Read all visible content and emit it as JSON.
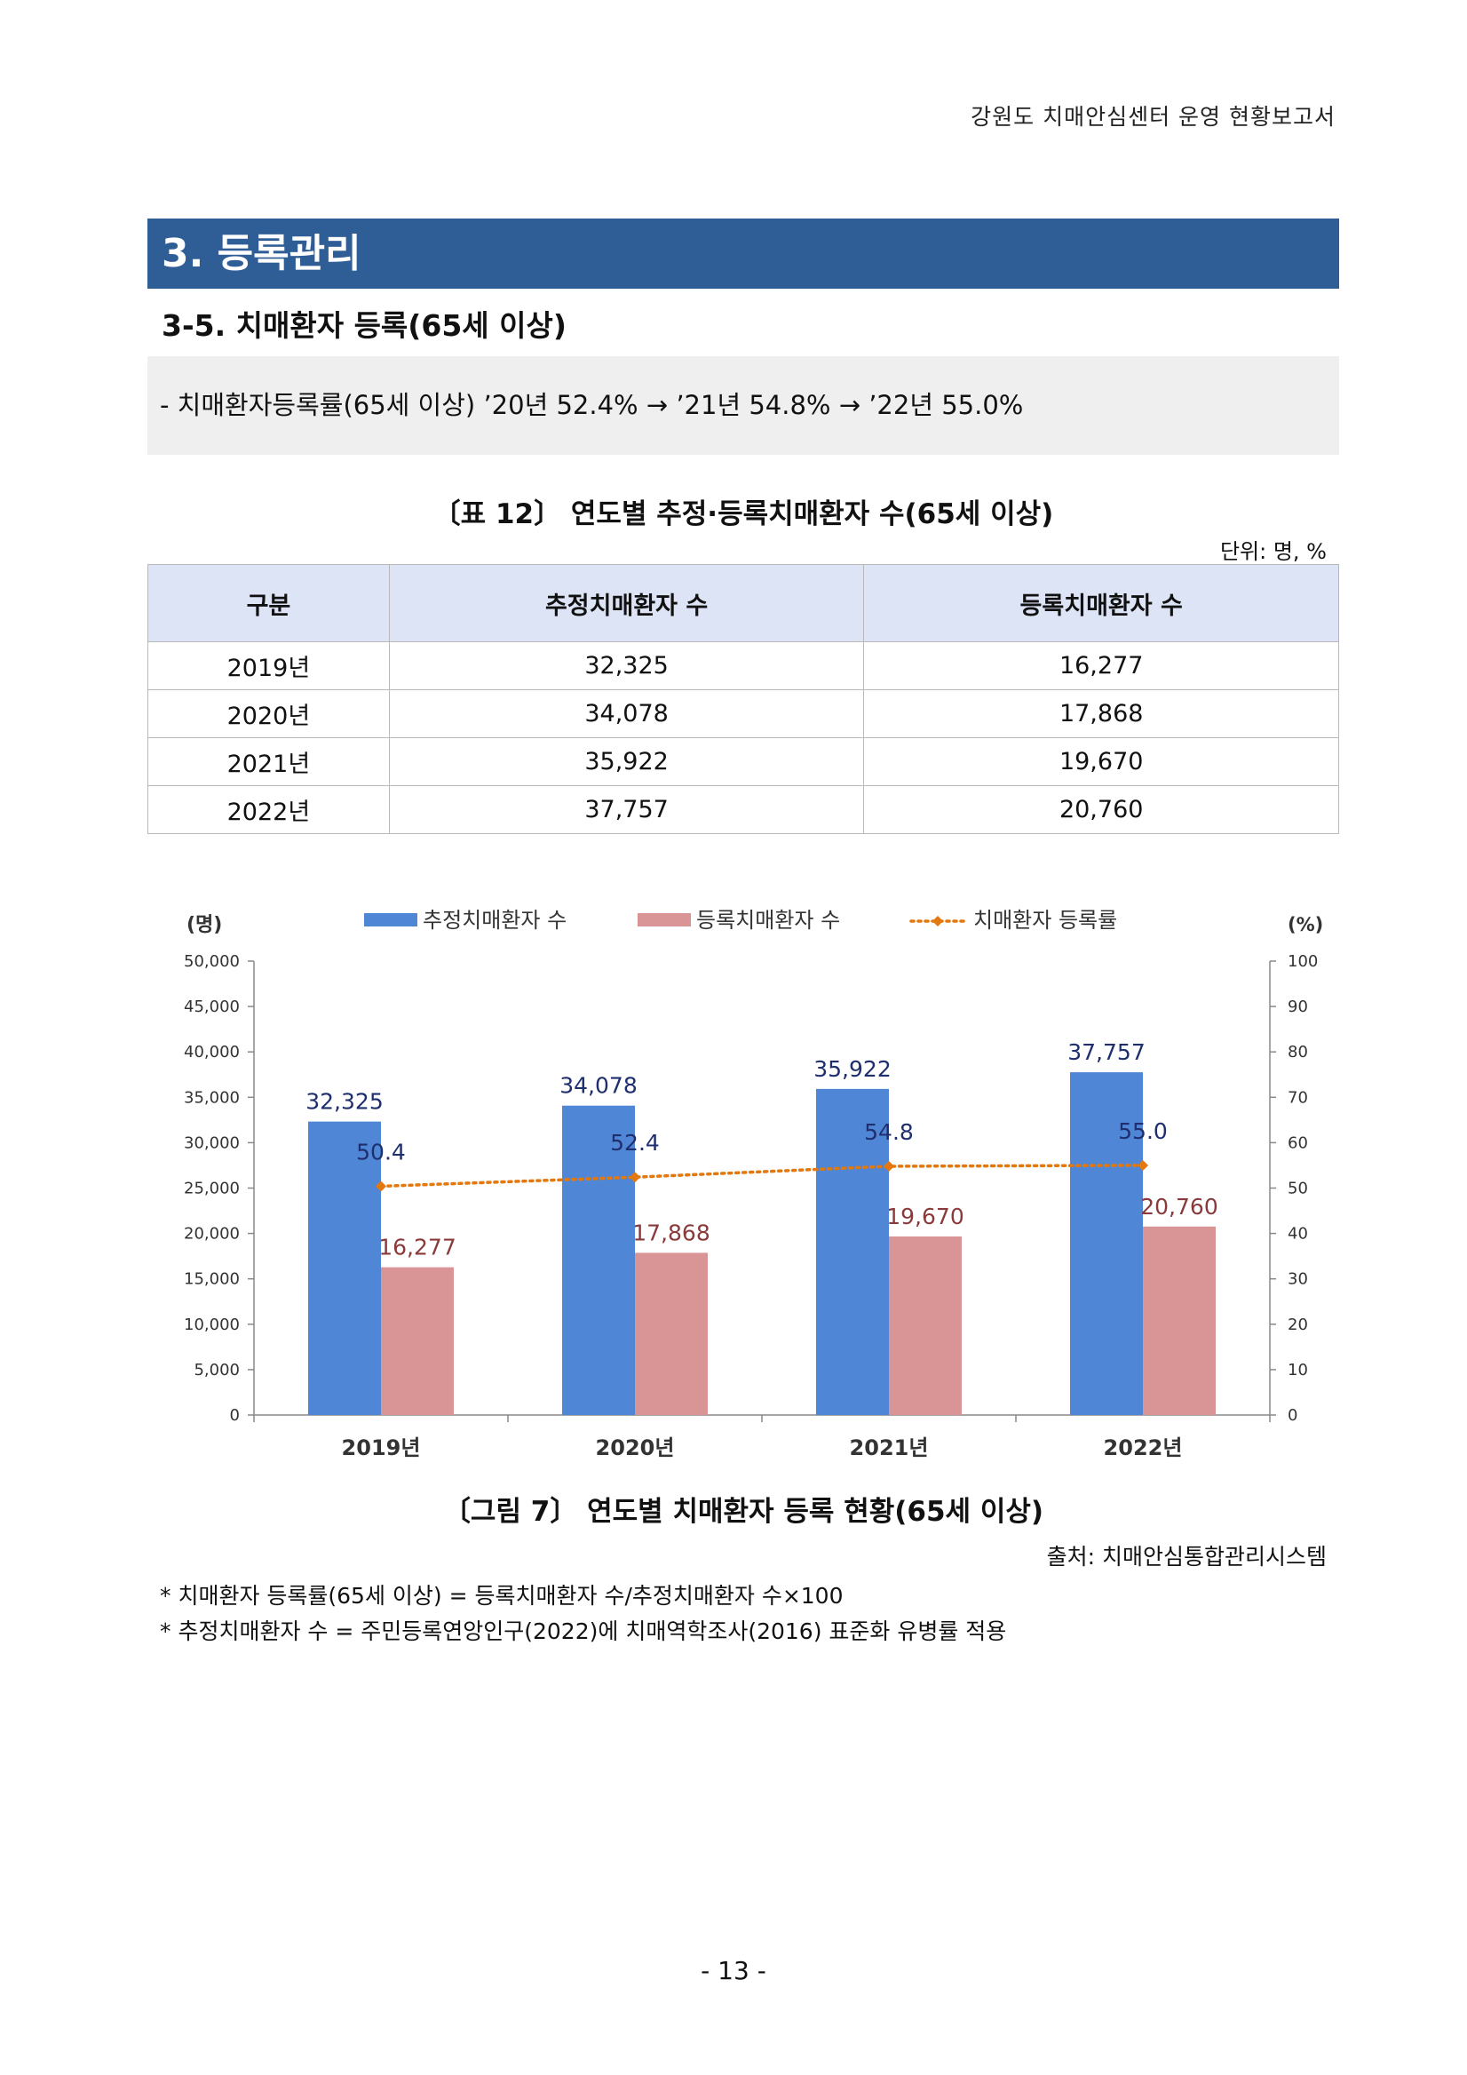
{
  "header": {
    "title": "강원도 치매안심센터 운영 현황보고서"
  },
  "section": {
    "title": "3. 등록관리"
  },
  "subsection": {
    "title": "3-5. 치매환자 등록(65세 이상)"
  },
  "summary": {
    "text": "- 치매환자등록률(65세 이상) ’20년 52.4% → ’21년 54.8% → ’22년 55.0%"
  },
  "table": {
    "caption": "〔표 12〕 연도별 추정·등록치매환자 수(65세 이상)",
    "unit": "단위: 명, %",
    "headers": [
      "구분",
      "추정치매환자 수",
      "등록치매환자 수"
    ],
    "rows": [
      [
        "2019년",
        "32,325",
        "16,277"
      ],
      [
        "2020년",
        "34,078",
        "17,868"
      ],
      [
        "2021년",
        "35,922",
        "19,670"
      ],
      [
        "2022년",
        "37,757",
        "20,760"
      ]
    ]
  },
  "figure": {
    "caption": "〔그림 7〕 연도별 치매환자 등록 현황(65세 이상)",
    "source": "출처: 치매안심통합관리시스템"
  },
  "notes": [
    "* 치매환자 등록률(65세 이상) = 등록치매환자 수/추정치매환자 수×100",
    "* 추정치매환자 수 = 주민등록연앙인구(2022)에 치매역학조사(2016) 표준화 유병률 적용"
  ],
  "page": {
    "number": "- 13 -"
  },
  "chart_data": {
    "type": "bar",
    "categories": [
      "2019년",
      "2020년",
      "2021년",
      "2022년"
    ],
    "series": [
      {
        "name": "추정치매환자 수",
        "type": "bar",
        "axis": "left",
        "color": "#4f86d6",
        "values": [
          32325,
          34078,
          35922,
          37757
        ],
        "labels": [
          "32,325",
          "34,078",
          "35,922",
          "37,757"
        ]
      },
      {
        "name": "등록치매환자 수",
        "type": "bar",
        "axis": "left",
        "color": "#d99595",
        "values": [
          16277,
          17868,
          19670,
          20760
        ],
        "labels": [
          "16,277",
          "17,868",
          "19,670",
          "20,760"
        ]
      },
      {
        "name": "치매환자 등록률",
        "type": "line",
        "style": "dotted",
        "axis": "right",
        "color": "#e2780e",
        "values": [
          50.4,
          52.4,
          54.8,
          55.0
        ],
        "labels": [
          "50.4",
          "52.4",
          "54.8",
          "55.0"
        ]
      }
    ],
    "y_left": {
      "label": "(명)",
      "range": [
        0,
        50000
      ],
      "ticks": [
        "0",
        "5,000",
        "10,000",
        "15,000",
        "20,000",
        "25,000",
        "30,000",
        "35,000",
        "40,000",
        "45,000",
        "50,000"
      ]
    },
    "y_right": {
      "label": "(%)",
      "range": [
        0,
        100
      ],
      "ticks": [
        "0",
        "10",
        "20",
        "30",
        "40",
        "50",
        "60",
        "70",
        "80",
        "90",
        "100"
      ]
    },
    "legend": "top",
    "grid": false,
    "label_color_bar1": "#1f2f6e",
    "label_color_bar2": "#8a3a3a"
  }
}
